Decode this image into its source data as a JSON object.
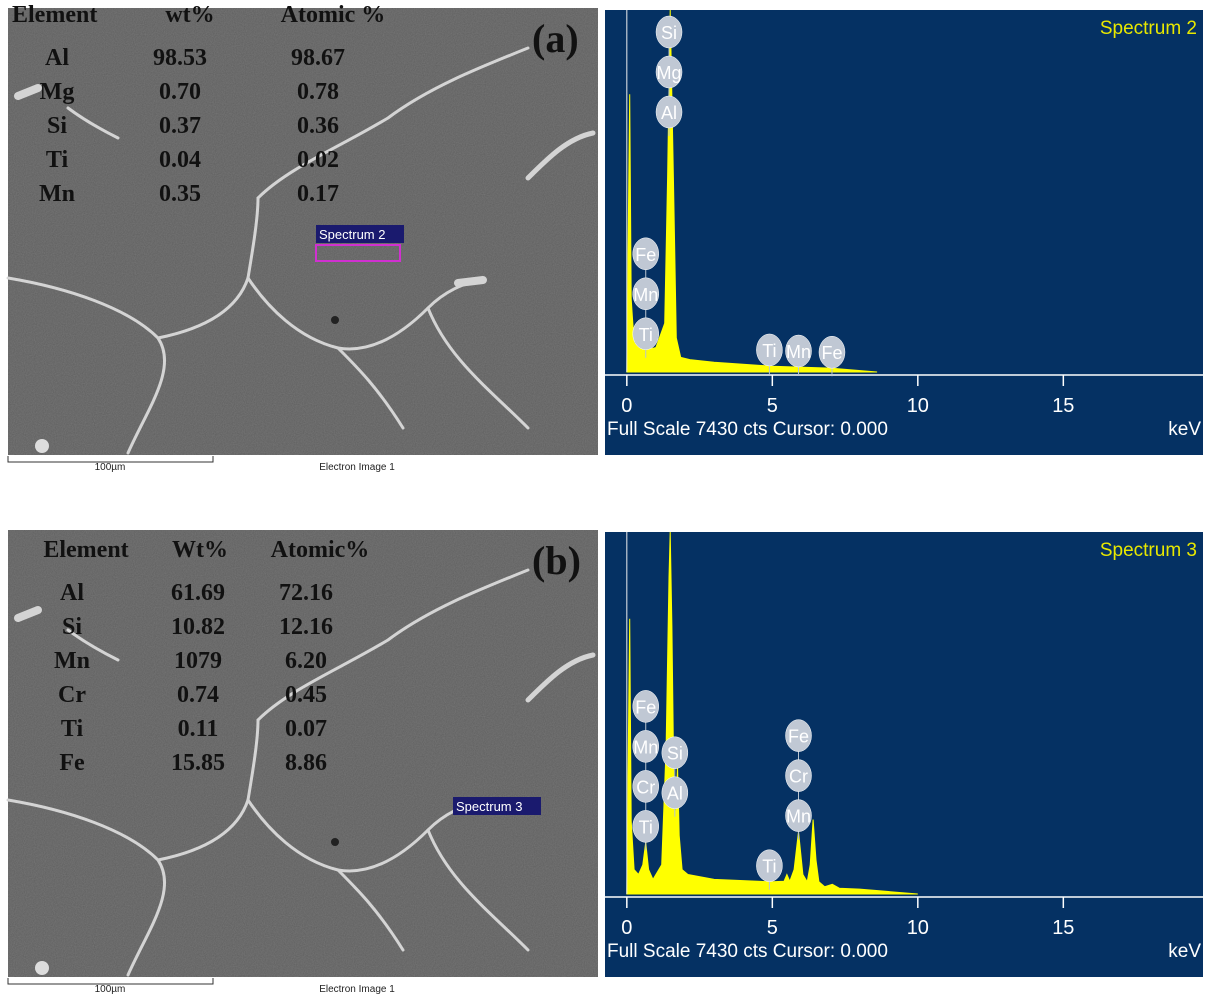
{
  "panels": [
    {
      "label": "(a)",
      "table": {
        "headers": [
          "Element",
          "wt%",
          "Atomic %"
        ],
        "rows": [
          [
            "Al",
            "98.53",
            "98.67"
          ],
          [
            "Mg",
            "0.70",
            "0.78"
          ],
          [
            "Si",
            "0.37",
            "0.36"
          ],
          [
            "Ti",
            "0.04",
            "0.02"
          ],
          [
            "Mn",
            "0.35",
            "0.17"
          ]
        ]
      },
      "marker": "Spectrum 2",
      "scale_bar": "100µm",
      "image_caption": "Electron Image 1",
      "spectrum": {
        "title": "Spectrum 2",
        "xlim": [
          -0.75,
          19.8
        ],
        "ylim": [
          0,
          7430
        ],
        "xticks": [
          0,
          5,
          10,
          15
        ],
        "x": [
          0,
          0.05,
          0.1,
          0.15,
          0.25,
          0.4,
          0.6,
          1.0,
          1.3,
          1.4,
          1.49,
          1.6,
          1.7,
          1.85,
          2.2,
          3,
          5,
          7,
          8.6
        ],
        "counts": [
          0,
          3000,
          5700,
          1500,
          600,
          500,
          450,
          500,
          1000,
          4000,
          7430,
          4000,
          700,
          300,
          250,
          200,
          120,
          80,
          0
        ],
        "peak_labels": [
          {
            "text": "Si",
            "x": 1.45
          },
          {
            "text": "Mg",
            "x": 1.45
          },
          {
            "text": "Al",
            "x": 1.45
          },
          {
            "text": "Fe",
            "x": 0.65
          },
          {
            "text": "Mn",
            "x": 0.65
          },
          {
            "text": "Ti",
            "x": 0.65
          },
          {
            "text": "Ti",
            "x": 4.9
          },
          {
            "text": "Mn",
            "x": 5.9
          },
          {
            "text": "Fe",
            "x": 7.05
          }
        ],
        "footer": "Full Scale 7430 cts Cursor: 0.000",
        "unit": "keV"
      }
    },
    {
      "label": "(b)",
      "table": {
        "headers": [
          "Element",
          "Wt%",
          "Atomic%"
        ],
        "rows": [
          [
            "Al",
            "61.69",
            "72.16"
          ],
          [
            "Si",
            "10.82",
            "12.16"
          ],
          [
            "Mn",
            "1079",
            "6.20"
          ],
          [
            "Cr",
            "0.74",
            "0.45"
          ],
          [
            "Ti",
            "0.11",
            "0.07"
          ],
          [
            "Fe",
            "15.85",
            "8.86"
          ]
        ]
      },
      "marker": "Spectrum 3",
      "scale_bar": "100µm",
      "image_caption": "Electron Image 1",
      "spectrum": {
        "title": "Spectrum 3",
        "xlim": [
          -0.75,
          19.8
        ],
        "ylim": [
          0,
          7430
        ],
        "xticks": [
          0,
          5,
          10,
          15
        ],
        "x": [
          0,
          0.05,
          0.1,
          0.15,
          0.25,
          0.4,
          0.55,
          0.65,
          0.75,
          0.9,
          1.2,
          1.35,
          1.45,
          1.49,
          1.55,
          1.62,
          1.68,
          1.74,
          1.8,
          1.9,
          2.1,
          3,
          4.5,
          5.0,
          5.4,
          5.5,
          5.6,
          5.75,
          5.9,
          6.05,
          6.2,
          6.3,
          6.4,
          6.5,
          6.6,
          6.8,
          7.06,
          7.3,
          8,
          10
        ],
        "counts": [
          0,
          3000,
          5650,
          1500,
          500,
          400,
          600,
          1060,
          500,
          300,
          600,
          3000,
          6500,
          7430,
          5500,
          2000,
          1500,
          2650,
          1200,
          500,
          400,
          300,
          260,
          250,
          260,
          400,
          260,
          500,
          1280,
          400,
          250,
          600,
          1530,
          700,
          250,
          150,
          200,
          120,
          100,
          0
        ],
        "peak_labels": [
          {
            "text": "Si",
            "x": 1.65
          },
          {
            "text": "Al",
            "x": 1.65
          },
          {
            "text": "Fe",
            "x": 0.65
          },
          {
            "text": "Mn",
            "x": 0.65
          },
          {
            "text": "Cr",
            "x": 0.65
          },
          {
            "text": "Ti",
            "x": 0.65
          },
          {
            "text": "Ti",
            "x": 4.9
          },
          {
            "text": "Fe",
            "x": 5.9
          },
          {
            "text": "Cr",
            "x": 5.9
          },
          {
            "text": "Mn",
            "x": 5.9
          }
        ],
        "footer": "Full Scale 7430 cts Cursor: 0.000",
        "unit": "keV"
      }
    }
  ]
}
